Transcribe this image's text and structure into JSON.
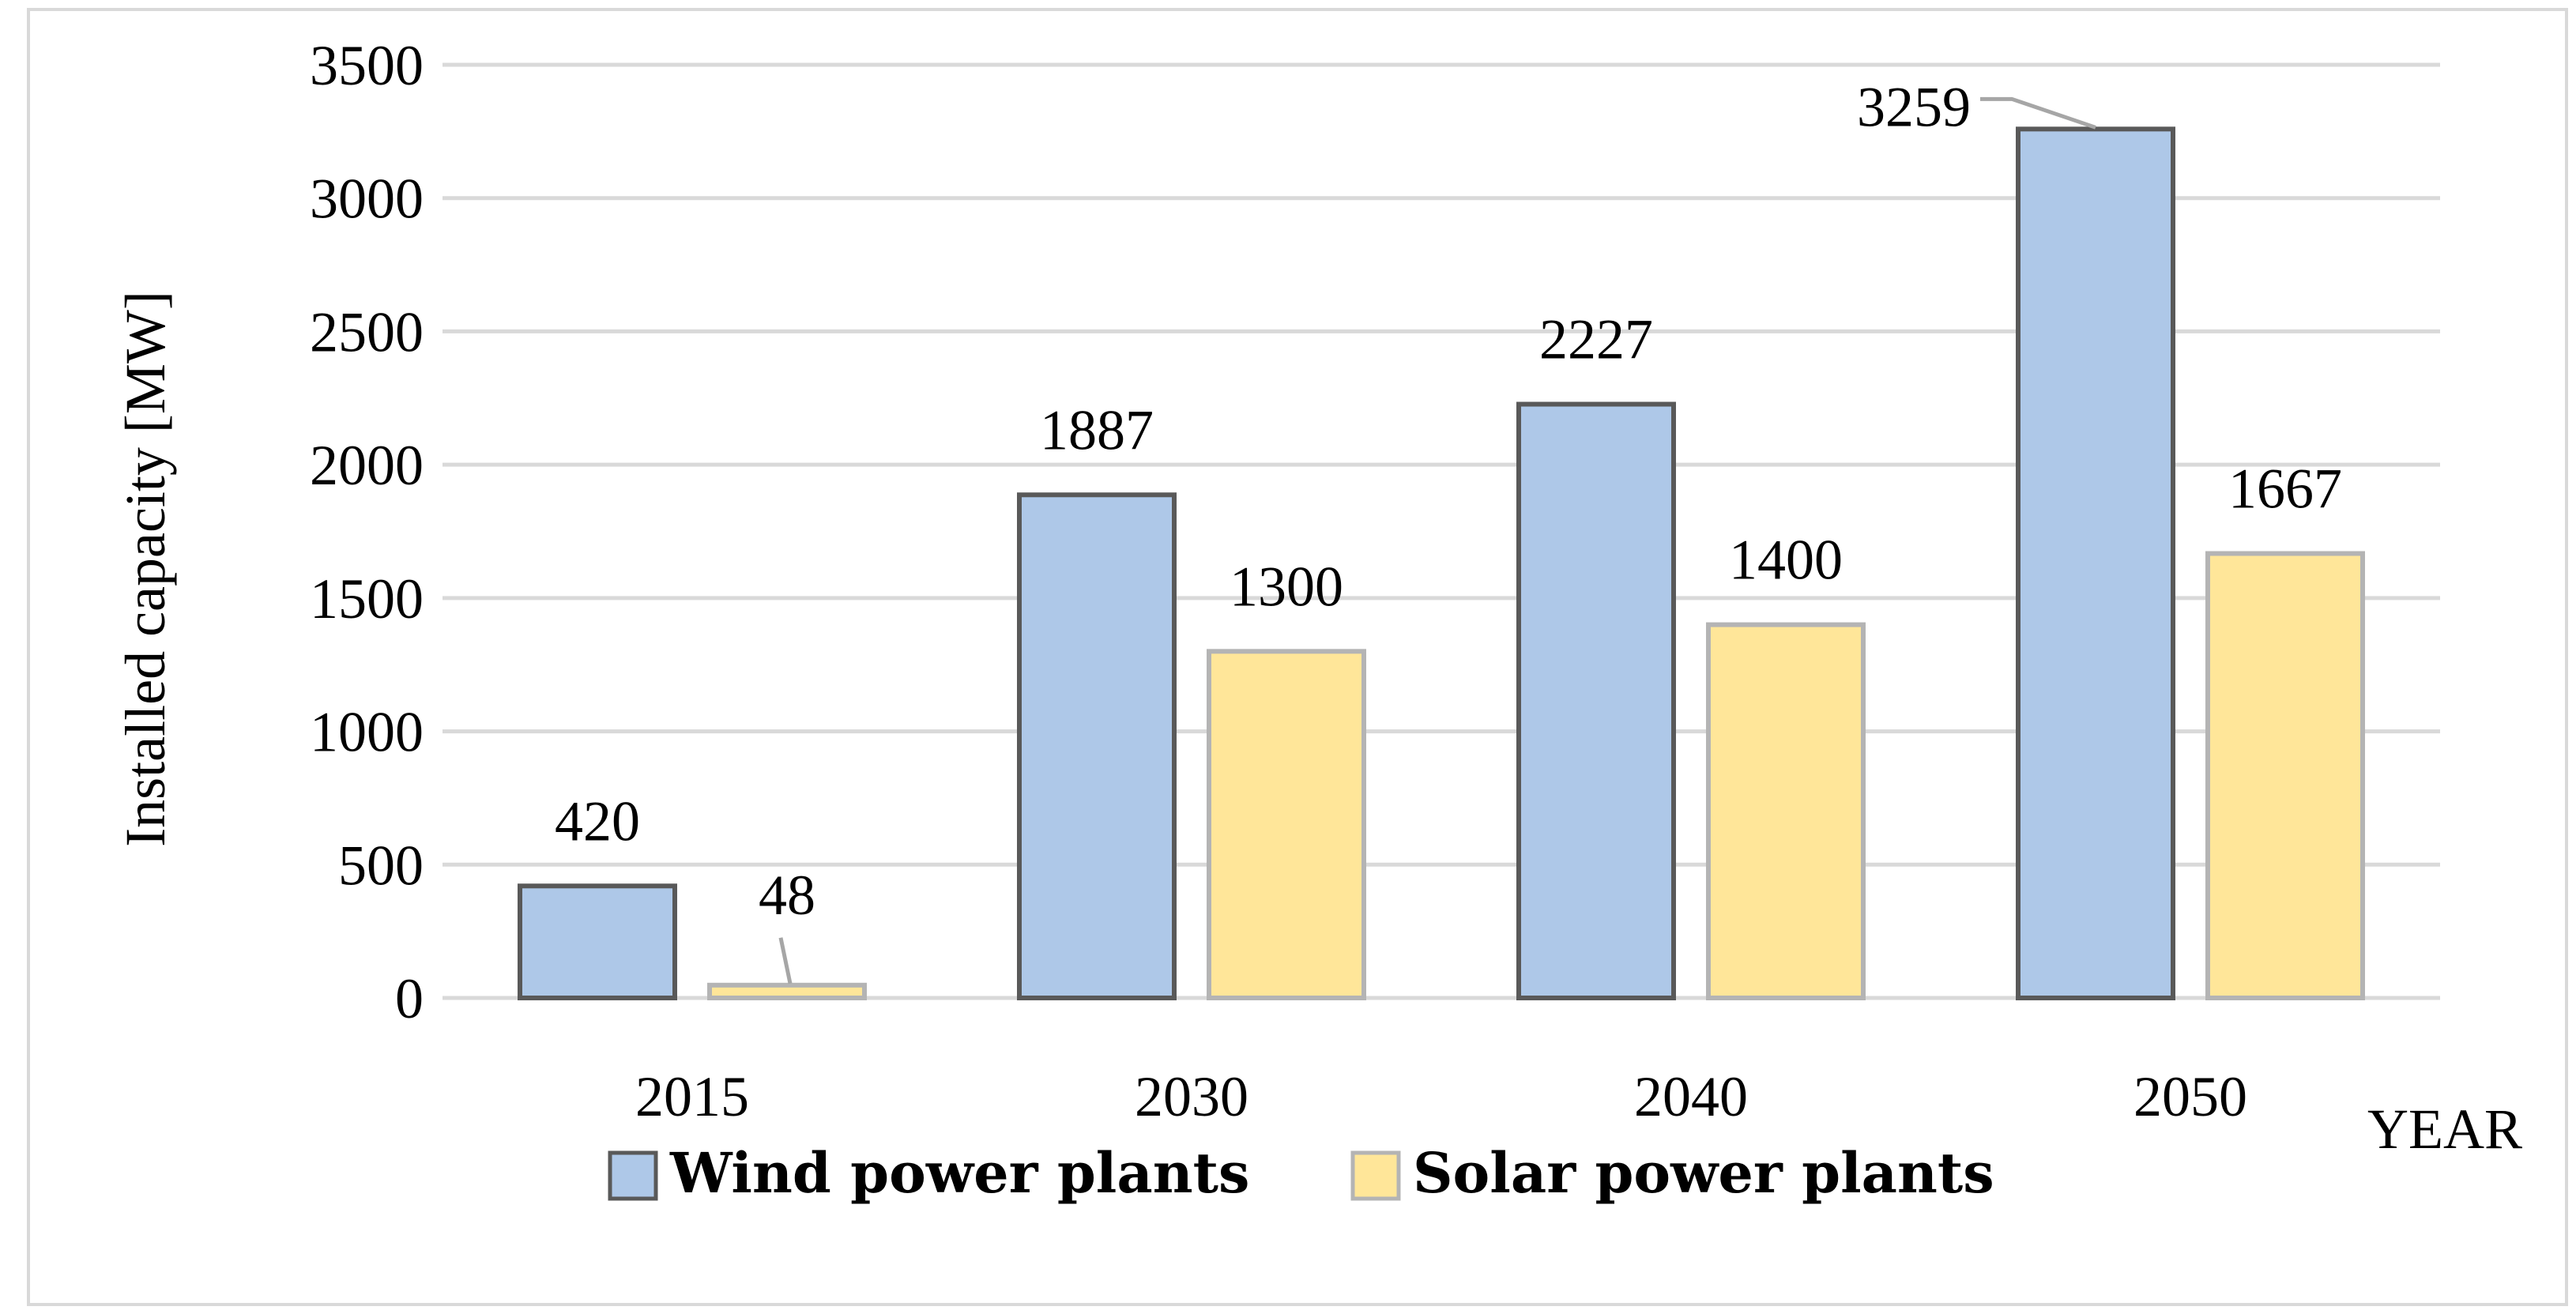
{
  "chart_data": {
    "type": "bar",
    "title": "",
    "categories": [
      "2015",
      "2030",
      "2040",
      "2050"
    ],
    "series": [
      {
        "name": "Wind power plants",
        "values": [
          420,
          1887,
          2227,
          3259
        ],
        "color": "#aec8e8",
        "stroke": "#595959"
      },
      {
        "name": "Solar power plants",
        "values": [
          48,
          1300,
          1400,
          1667
        ],
        "color": "#ffe699",
        "stroke": "#b4b4b4"
      }
    ],
    "xlabel": "YEAR",
    "ylabel": "Installed capacity [MW]",
    "ylim": [
      0,
      3500
    ],
    "yticks": [
      0,
      500,
      1000,
      1500,
      2000,
      2500,
      3000,
      3500
    ],
    "grid": true,
    "legend_position": "bottom",
    "data_labels": {
      "wind": [
        "420",
        "1887",
        "2227",
        "3259"
      ],
      "solar": [
        "48",
        "1300",
        "1400",
        "1667"
      ]
    }
  },
  "colors": {
    "gridline": "#d9d9d9",
    "frame": "#d9d9d9",
    "leader_line": "#a6a6a6"
  }
}
